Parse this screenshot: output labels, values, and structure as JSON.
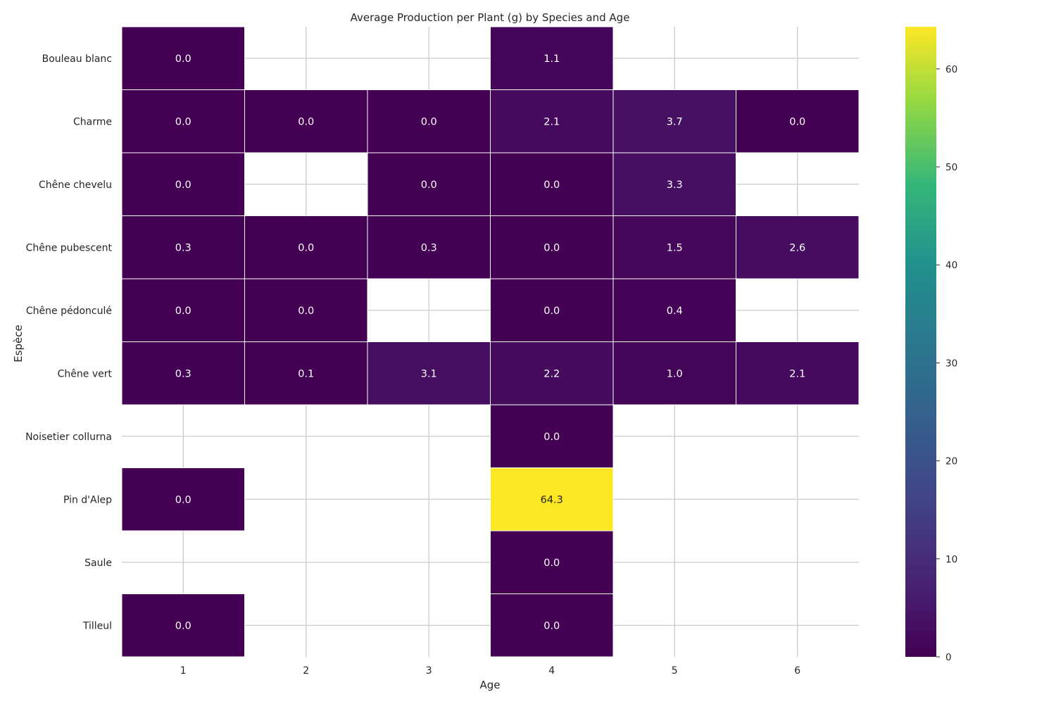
{
  "chart_data": {
    "type": "heatmap",
    "title": "Average Production per Plant (g) by Species and Age",
    "xlabel": "Age",
    "ylabel": "Espèce",
    "x_categories": [
      "1",
      "2",
      "3",
      "4",
      "5",
      "6"
    ],
    "y_categories": [
      "Bouleau blanc",
      "Charme",
      "Chêne chevelu",
      "Chêne pubescent",
      "Chêne pédonculé",
      "Chêne vert",
      "Noisetier collurna",
      "Pin d'Alep",
      "Saule",
      "Tilleul"
    ],
    "values": [
      [
        0.0,
        null,
        null,
        1.1,
        null,
        null
      ],
      [
        0.0,
        0.0,
        0.0,
        2.1,
        3.7,
        0.0
      ],
      [
        0.0,
        null,
        0.0,
        0.0,
        3.3,
        null
      ],
      [
        0.3,
        0.0,
        0.3,
        0.0,
        1.5,
        2.6
      ],
      [
        0.0,
        0.0,
        null,
        0.0,
        0.4,
        null
      ],
      [
        0.3,
        0.1,
        3.1,
        2.2,
        1.0,
        2.1
      ],
      [
        null,
        null,
        null,
        0.0,
        null,
        null
      ],
      [
        0.0,
        null,
        null,
        64.3,
        null,
        null
      ],
      [
        null,
        null,
        null,
        0.0,
        null,
        null
      ],
      [
        0.0,
        null,
        null,
        0.0,
        null,
        null
      ]
    ],
    "colormap": "viridis",
    "color_range": [
      0,
      64.3
    ],
    "colorbar_ticks": [
      0,
      10,
      20,
      30,
      40,
      50,
      60
    ],
    "grid": true,
    "annotations": "values shown with one decimal",
    "missing_cells": "blank"
  }
}
